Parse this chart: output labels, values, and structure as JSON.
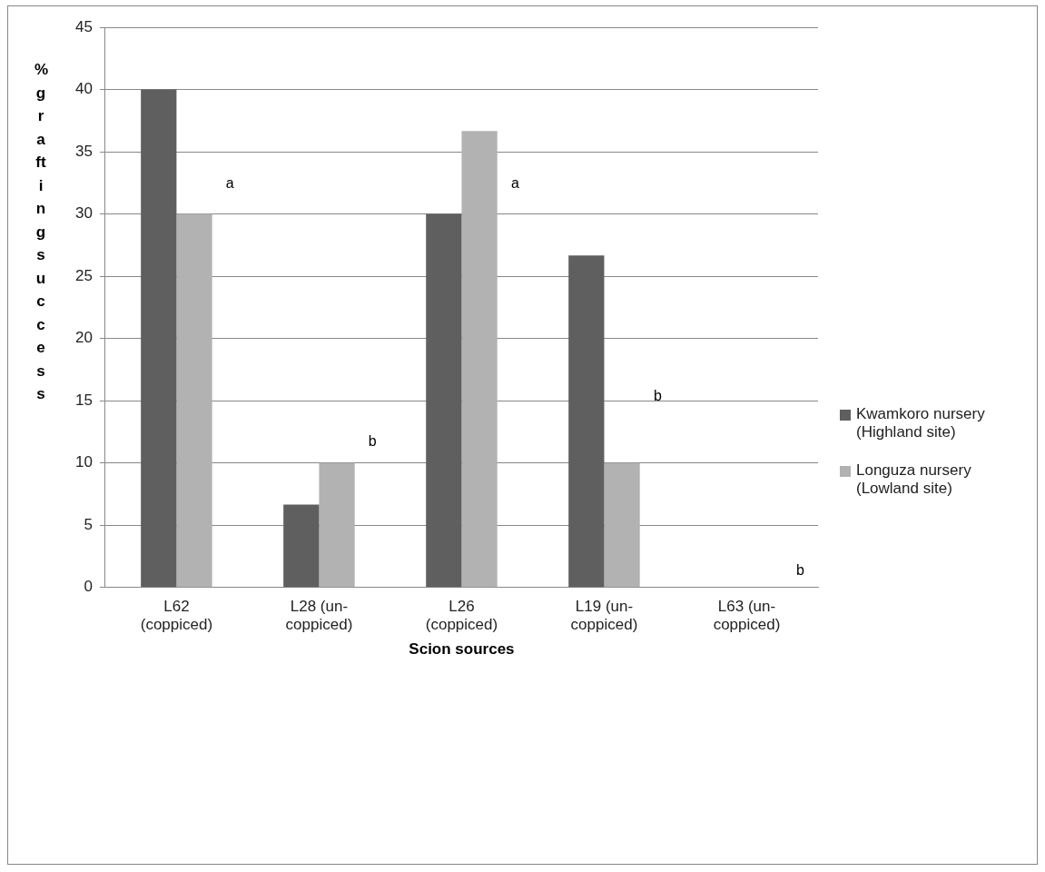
{
  "chart_data": {
    "type": "bar",
    "xlabel": "Scion sources",
    "ylabel": "% grafting success",
    "categories": [
      "L62 (coppiced)",
      "L28 (un-coppiced)",
      "L26 (coppiced)",
      "L19 (un-coppiced)",
      "L63 (un-coppiced)"
    ],
    "series": [
      {
        "name": "Kwamkoro nursery (Highland site)",
        "color": "#5f5f5f",
        "values": [
          40,
          6.67,
          30,
          26.67,
          0
        ]
      },
      {
        "name": "Longuza nursery (Lowland site)",
        "color": "#b2b2b2",
        "values": [
          30,
          10,
          36.67,
          10,
          0
        ]
      }
    ],
    "ylim": [
      0,
      45
    ],
    "yticks": [
      0,
      5,
      10,
      15,
      20,
      25,
      30,
      35,
      40,
      45
    ],
    "grid": "y",
    "legend": "right",
    "annotations": [
      "a",
      "b",
      "a",
      "b",
      "b"
    ]
  }
}
